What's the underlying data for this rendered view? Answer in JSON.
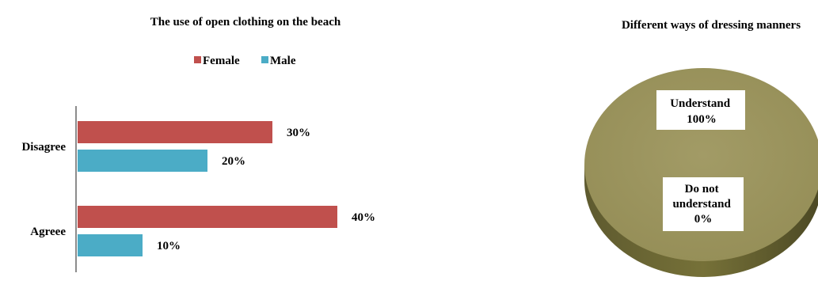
{
  "chart_data": [
    {
      "type": "bar",
      "orientation": "horizontal",
      "title": "The use of open clothing on the beach",
      "categories": [
        "Disagree",
        "Agreee"
      ],
      "series": [
        {
          "name": "Female",
          "values": [
            30,
            40
          ],
          "labels": [
            "30%",
            "40%"
          ],
          "color": "#c0504d"
        },
        {
          "name": "Male",
          "values": [
            20,
            10
          ],
          "labels": [
            "20%",
            "10%"
          ],
          "color": "#4bacc6"
        }
      ],
      "unit": "%",
      "xlim": [
        0,
        50
      ],
      "legend": "top",
      "grid": false
    },
    {
      "type": "pie",
      "title": "Different ways of dressing manners",
      "slices": [
        {
          "label_lines": [
            "Understand",
            "100%"
          ],
          "value": 100
        },
        {
          "label_lines": [
            "Do not",
            "understand",
            "0%"
          ],
          "value": 0
        }
      ],
      "color": "#9c9560",
      "style": "3d"
    }
  ]
}
